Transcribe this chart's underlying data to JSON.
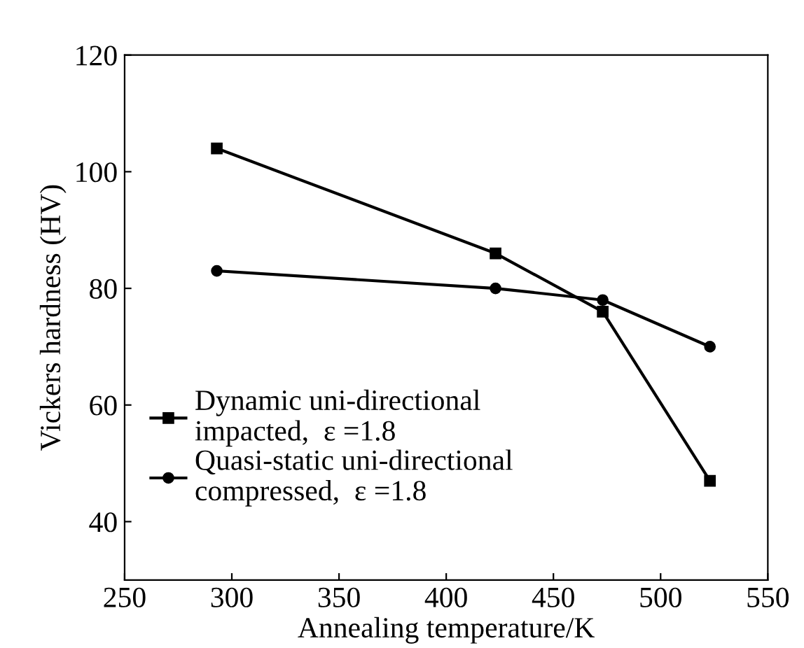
{
  "chart_data": {
    "type": "line",
    "xlabel": "Annealing temperature/K",
    "ylabel": "Vickers hardness (HV)",
    "xlim": [
      250,
      550
    ],
    "xticks": [
      250,
      300,
      350,
      400,
      450,
      500,
      550
    ],
    "ylim": [
      30,
      120
    ],
    "yticks": [
      40,
      60,
      80,
      100,
      120
    ],
    "legend": "bottom left",
    "grid": false,
    "line_style": "solid",
    "series": [
      {
        "name": "Dynamic uni-directional\nimpacted,  ε =1.8",
        "color": "#000000",
        "marker": "square",
        "x": [
          293,
          423,
          473,
          523
        ],
        "values": [
          104,
          86,
          76,
          47
        ]
      },
      {
        "name": "Quasi-static uni-directional\ncompressed,  ε =1.8",
        "color": "#000000",
        "marker": "circle",
        "x": [
          293,
          423,
          473,
          523
        ],
        "values": [
          83,
          80,
          78,
          70
        ]
      }
    ]
  }
}
